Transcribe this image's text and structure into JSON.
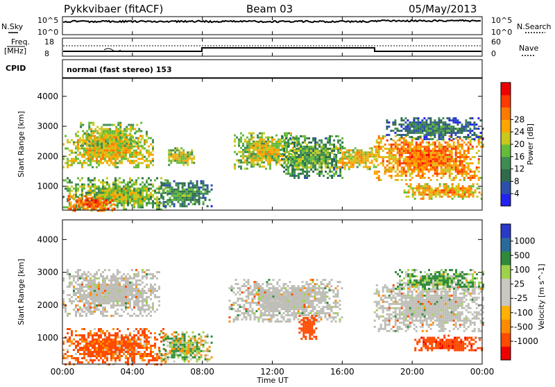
{
  "header": {
    "station": "Pykkvibaer (fitACF)",
    "beam": "Beam 03",
    "date": "05/May/2013"
  },
  "panels": {
    "nsky_label": "N.Sky",
    "nsky_top": "10^5",
    "nsky_bottom": "10^0",
    "nsearch_label": "N.Search",
    "nsearch_top": "10^5",
    "nsearch_bottom": "10^0",
    "freq_label_1": "Freq.",
    "freq_label_2": "[MHz]",
    "freq_top": "18",
    "freq_bottom": "8",
    "nave_label": "Nave",
    "nave_top": "60",
    "nave_bottom": "0",
    "cpid_label": "CPID",
    "cpid_text": "normal (fast stereo) 153"
  },
  "colors": {
    "power_scale": [
      "#2222ee",
      "#2c4fa8",
      "#2f6b4a",
      "#3e8c52",
      "#66bb3a",
      "#c8c81e",
      "#ffa500",
      "#ff7a00",
      "#ff3a00",
      "#ee0000"
    ],
    "velocity_scale": [
      "#ee0000",
      "#ff4a00",
      "#ff8c00",
      "#ffb000",
      "#c8c8c0",
      "#c8c8c0",
      "#9fd24a",
      "#2f8a3a",
      "#2a6a9a",
      "#2a3ac8"
    ],
    "ground_scatter": "#bdbdb6"
  },
  "chart_data": [
    {
      "type": "heatmap",
      "name": "power",
      "ylabel": "Slant Range [km]",
      "ylim": [
        200,
        4600
      ],
      "y_ticks": [
        "1000",
        "2000",
        "3000",
        "4000"
      ],
      "colorbar_label": "Power [dB]",
      "colorbar_ticks": [
        "4",
        "8",
        "12",
        "16",
        "20",
        "24",
        "28"
      ],
      "x_ticks": [
        "00:00",
        "04:00",
        "08:00",
        "12:00",
        "16:00",
        "20:00",
        "00:00"
      ],
      "xlabel": "Time UT",
      "xlim": [
        0,
        24
      ],
      "regions": [
        {
          "t": [
            0.0,
            5.2
          ],
          "r": [
            1650,
            2850
          ],
          "level": 20
        },
        {
          "t": [
            1.0,
            4.5
          ],
          "r": [
            2300,
            3150
          ],
          "level": 18
        },
        {
          "t": [
            0.0,
            6.0
          ],
          "r": [
            200,
            1300
          ],
          "level": 16
        },
        {
          "t": [
            0.3,
            3.0
          ],
          "r": [
            200,
            700
          ],
          "level": 26
        },
        {
          "t": [
            5.5,
            8.5
          ],
          "r": [
            300,
            1200
          ],
          "level": 12
        },
        {
          "t": [
            5.8,
            7.5
          ],
          "r": [
            1700,
            2300
          ],
          "level": 18
        },
        {
          "t": [
            9.8,
            13.5
          ],
          "r": [
            1600,
            2800
          ],
          "level": 18
        },
        {
          "t": [
            12.5,
            16.0
          ],
          "r": [
            1300,
            2700
          ],
          "level": 14
        },
        {
          "t": [
            15.5,
            18.0
          ],
          "r": [
            1600,
            2300
          ],
          "level": 20
        },
        {
          "t": [
            17.8,
            24.0
          ],
          "r": [
            1200,
            2700
          ],
          "level": 24
        },
        {
          "t": [
            19.5,
            24.0
          ],
          "r": [
            600,
            1100
          ],
          "level": 22
        },
        {
          "t": [
            18.5,
            24.0
          ],
          "r": [
            2600,
            3300
          ],
          "level": 10
        }
      ]
    },
    {
      "type": "heatmap",
      "name": "velocity",
      "ylabel": "Slant Range [km]",
      "ylim": [
        200,
        4600
      ],
      "y_ticks": [
        "1000",
        "2000",
        "3000",
        "4000"
      ],
      "colorbar_label": "Velocity [m s^-1]",
      "colorbar_ticks": [
        "1000",
        "500",
        "100",
        "25",
        "-25",
        "-100",
        "-500",
        "-1000"
      ],
      "x_ticks": [
        "00:00",
        "04:00",
        "08:00",
        "12:00",
        "16:00",
        "20:00",
        "00:00"
      ],
      "xlabel": "Time UT",
      "xlim": [
        0,
        24
      ],
      "regions": [
        {
          "t": [
            0.0,
            5.5
          ],
          "r": [
            1700,
            3100
          ],
          "v": 0
        },
        {
          "t": [
            0.0,
            6.0
          ],
          "r": [
            200,
            1300
          ],
          "v": -150
        },
        {
          "t": [
            5.5,
            8.5
          ],
          "r": [
            300,
            1200
          ],
          "v": 50
        },
        {
          "t": [
            9.5,
            16.0
          ],
          "r": [
            1500,
            2800
          ],
          "v": 0
        },
        {
          "t": [
            13.5,
            14.5
          ],
          "r": [
            1000,
            1700
          ],
          "v": -300
        },
        {
          "t": [
            17.8,
            24.0
          ],
          "r": [
            1200,
            2700
          ],
          "v": 0
        },
        {
          "t": [
            20.0,
            24.0
          ],
          "r": [
            600,
            1100
          ],
          "v": -400
        },
        {
          "t": [
            19.0,
            24.0
          ],
          "r": [
            2500,
            3100
          ],
          "v": 120
        }
      ]
    }
  ]
}
